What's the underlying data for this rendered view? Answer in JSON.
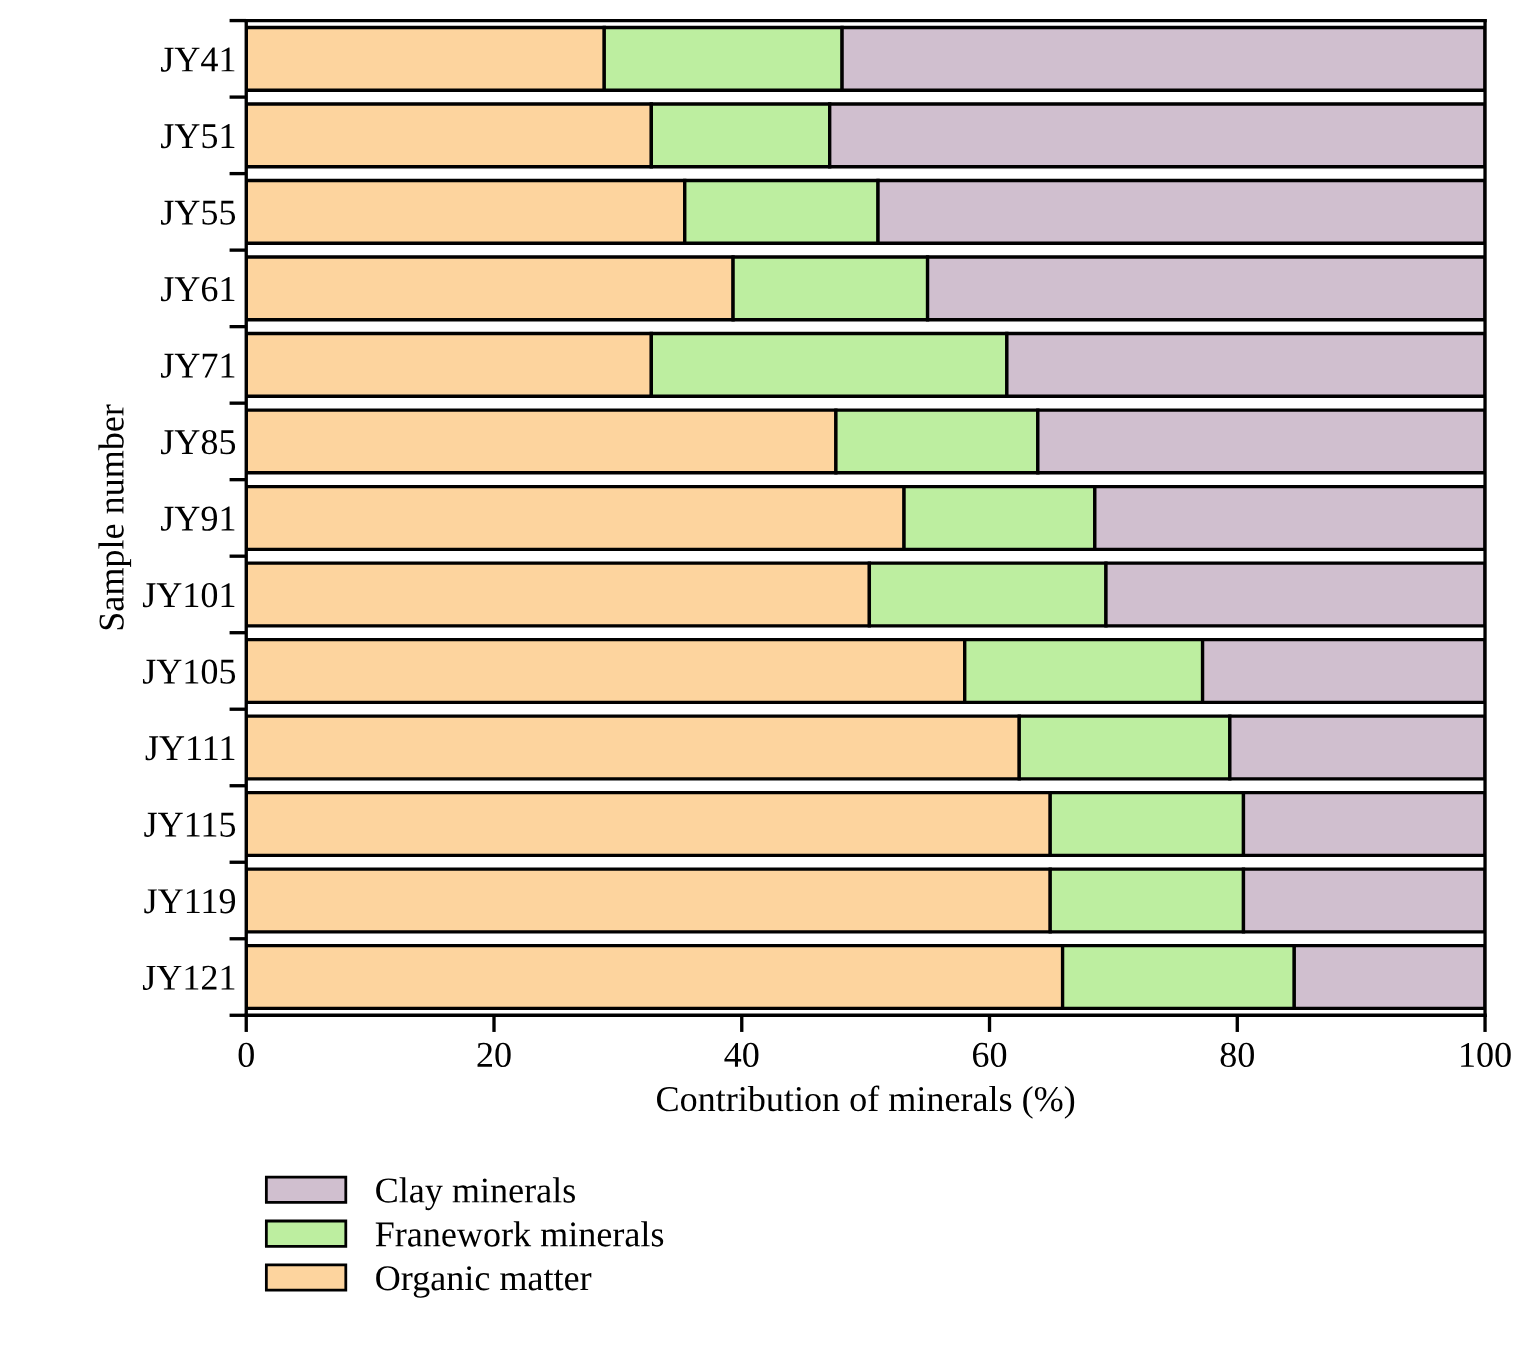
{
  "chart_data": {
    "type": "bar",
    "orientation": "horizontal",
    "stacked": true,
    "xlabel": "Contribution of minerals (%)",
    "ylabel": "Sample number",
    "categories": [
      "JY41",
      "JY51",
      "JY55",
      "JY61",
      "JY71",
      "JY85",
      "JY91",
      "JY101",
      "JY105",
      "JY111",
      "JY115",
      "JY119",
      "JY121"
    ],
    "series": [
      {
        "name": "Organic matter",
        "color": "#fdd49e",
        "values": [
          28.9,
          32.7,
          35.4,
          39.3,
          32.7,
          47.6,
          53.1,
          50.3,
          58.0,
          62.4,
          64.9,
          64.9,
          65.9
        ]
      },
      {
        "name": "Franework minerals",
        "color": "#bdeea0",
        "values": [
          19.2,
          14.4,
          15.6,
          15.7,
          28.7,
          16.3,
          15.4,
          19.1,
          19.2,
          17.0,
          15.6,
          15.6,
          18.7
        ]
      },
      {
        "name": "Clay minerals",
        "color": "#d0bfcf",
        "values": [
          51.9,
          52.9,
          49.0,
          45.0,
          38.6,
          36.1,
          31.5,
          30.6,
          22.8,
          20.6,
          19.5,
          19.5,
          15.4
        ]
      }
    ],
    "xlim": [
      0,
      100
    ],
    "xticks": [
      0,
      20,
      40,
      60,
      80,
      100
    ],
    "legend": "bottom",
    "grid": false
  }
}
